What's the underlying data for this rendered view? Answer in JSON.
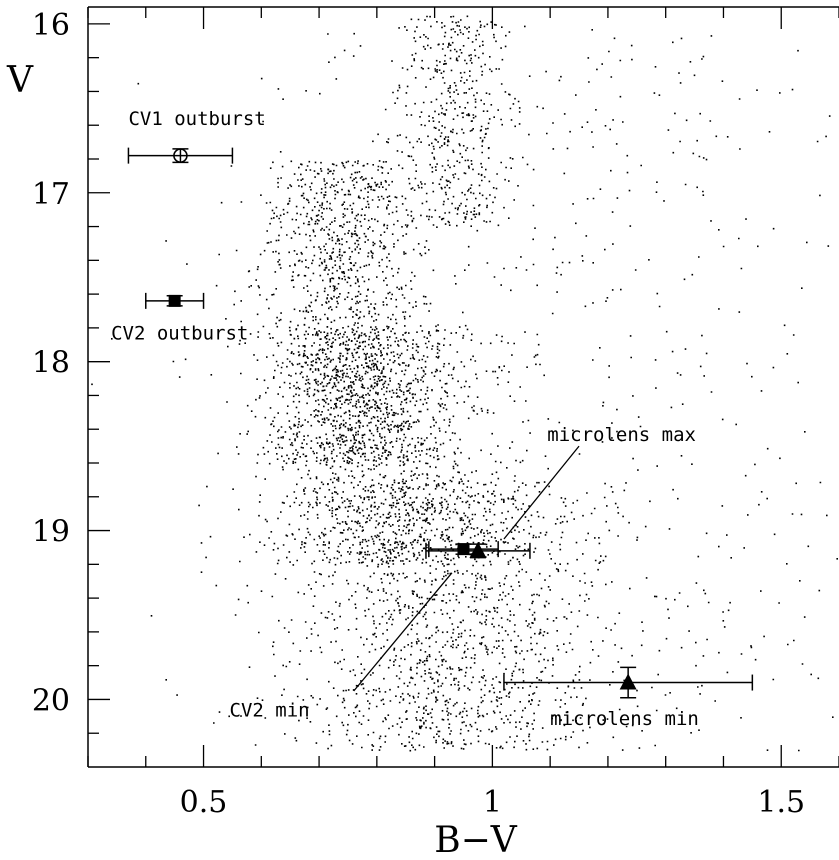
{
  "chart_data": {
    "type": "scatter",
    "title": "",
    "xlabel": "B−V",
    "ylabel": "V",
    "xlim": [
      0.3,
      1.6
    ],
    "ylim": [
      20.4,
      15.9
    ],
    "y_inverted": true,
    "grid": false,
    "x_major_ticks": [
      0.5,
      1.0,
      1.5
    ],
    "x_tick_labels": [
      "0.5",
      "1",
      "1.5"
    ],
    "y_major_ticks": [
      16,
      17,
      18,
      19,
      20
    ],
    "y_tick_labels": [
      "16",
      "17",
      "18",
      "19",
      "20"
    ],
    "background_stars": {
      "description_color": "#000000",
      "components": [
        {
          "weight": 0.26,
          "x_mean": 0.74,
          "x_sd": 0.07,
          "y_min": 16.8,
          "y_max": 18.6
        },
        {
          "weight": 0.24,
          "x_mean": 0.8,
          "x_sd": 0.09,
          "y_min": 17.8,
          "y_max": 19.2
        },
        {
          "weight": 0.28,
          "x_mean": 0.92,
          "x_sd": 0.13,
          "y_min": 18.7,
          "y_max": 20.3
        },
        {
          "weight": 0.09,
          "x_mean": 0.93,
          "x_sd": 0.05,
          "y_min": 15.95,
          "y_max": 17.2
        },
        {
          "weight": 0.13,
          "x_mean": 1.1,
          "x_sd": 0.3,
          "y_min": 16.0,
          "y_max": 20.3
        }
      ],
      "approx_count": 5200
    },
    "points": [
      {
        "label": "CV1 outburst",
        "x": 0.46,
        "y": 16.78,
        "xerr": 0.09,
        "yerr": 0.04,
        "marker": "open-circle"
      },
      {
        "label": "CV2 outburst",
        "x": 0.45,
        "y": 17.64,
        "xerr": 0.05,
        "yerr": 0.03,
        "marker": "filled-square"
      },
      {
        "label": "CV2 min",
        "x": 0.95,
        "y": 19.11,
        "xerr": 0.06,
        "yerr": 0.03,
        "marker": "filled-square"
      },
      {
        "label": "microlens max",
        "x": 0.975,
        "y": 19.12,
        "xerr": 0.09,
        "yerr": 0.04,
        "marker": "filled-triangle"
      },
      {
        "label": "microlens min",
        "x": 1.235,
        "y": 19.9,
        "xerr": 0.215,
        "yerr": 0.09,
        "marker": "filled-triangle"
      }
    ],
    "annotations": [
      {
        "text": "CV1 outburst",
        "x": 0.37,
        "y": 16.6,
        "anchor": "start"
      },
      {
        "text": "CV2 outburst",
        "x": 0.34,
        "y": 17.87,
        "anchor": "start"
      },
      {
        "text": "microlens max",
        "x": 1.095,
        "y": 18.47,
        "anchor": "start"
      },
      {
        "text": "CV2 min",
        "x": 0.545,
        "y": 20.1,
        "anchor": "start"
      },
      {
        "text": "microlens min",
        "x": 1.1,
        "y": 20.15,
        "anchor": "start"
      }
    ],
    "leader_lines": [
      {
        "from": [
          1.15,
          18.5
        ],
        "to": [
          1.02,
          19.05
        ]
      },
      {
        "from": [
          0.93,
          19.25
        ],
        "to": [
          0.76,
          19.95
        ]
      }
    ]
  }
}
